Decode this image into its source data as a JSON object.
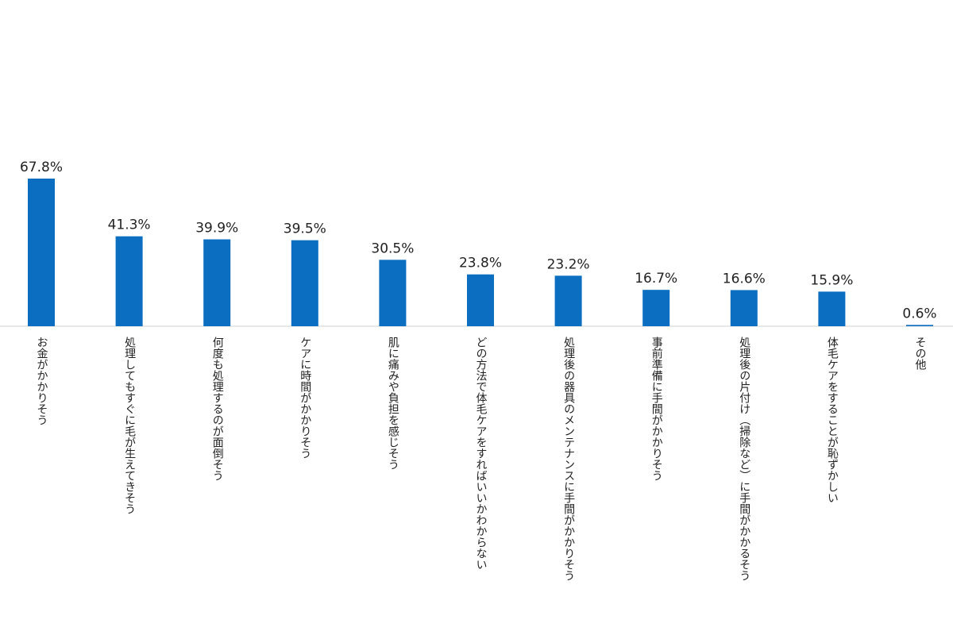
{
  "chart_data": {
    "type": "bar",
    "categories": [
      [
        "お金がかかりそう"
      ],
      [
        "処理してもすぐに毛が生えてきそう"
      ],
      [
        "何度も処理するのが面倒そう"
      ],
      [
        "ケアに時間がかかりそう"
      ],
      [
        "肌に痛みや負担を感じそう"
      ],
      [
        "どの方法で体毛ケアをすればいいか",
        "わからない"
      ],
      [
        "処理後の器具のメンテナンスに手間",
        "がかかりそう"
      ],
      [
        "事前準備に手間がかかりそう"
      ],
      [
        "処理後の片付け（掃除など）に手間が",
        "かかるそう"
      ],
      [
        "体毛ケアをすることが恥ずかしい"
      ],
      [
        "その他"
      ]
    ],
    "values": [
      67.8,
      41.3,
      39.9,
      39.5,
      30.5,
      23.8,
      23.2,
      16.7,
      16.6,
      15.9,
      0.6
    ],
    "value_labels": [
      "67.8%",
      "41.3%",
      "39.9%",
      "39.5%",
      "30.5%",
      "23.8%",
      "23.2%",
      "16.7%",
      "16.6%",
      "15.9%",
      "0.6%"
    ],
    "color": "#0b6ec0"
  }
}
